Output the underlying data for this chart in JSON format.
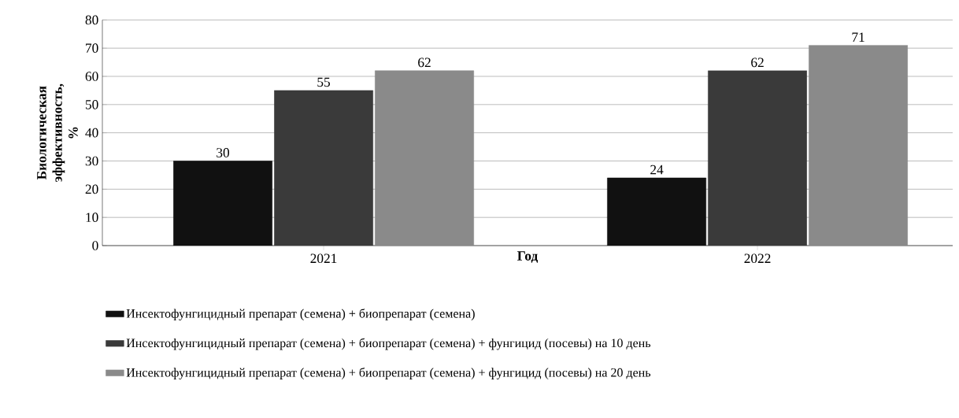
{
  "chart_data": {
    "type": "bar",
    "xlabel": "Год",
    "ylabel": "Биологическая эффективность, %",
    "categories": [
      "2021",
      "2022"
    ],
    "series": [
      {
        "name": "Инсектофунгицидный препарат (семена) + биопрепарат (семена)",
        "color": "#111111",
        "values": [
          30,
          24
        ]
      },
      {
        "name": "Инсектофунгицидный препарат (семена) + биопрепарат (семена) + фунгицид (посевы) на 10 день",
        "color": "#3a3a3a",
        "values": [
          55,
          62
        ]
      },
      {
        "name": "Инсектофунгицидный препарат (семена) + биопрепарат (семена) + фунгицид (посевы) на 20 день",
        "color": "#8a8a8a",
        "values": [
          62,
          71
        ]
      }
    ],
    "ylim": [
      0,
      80
    ],
    "yticks": [
      0,
      10,
      20,
      30,
      40,
      50,
      60,
      70,
      80
    ],
    "grid": "y",
    "legend": "bottom",
    "data_labels": true
  }
}
